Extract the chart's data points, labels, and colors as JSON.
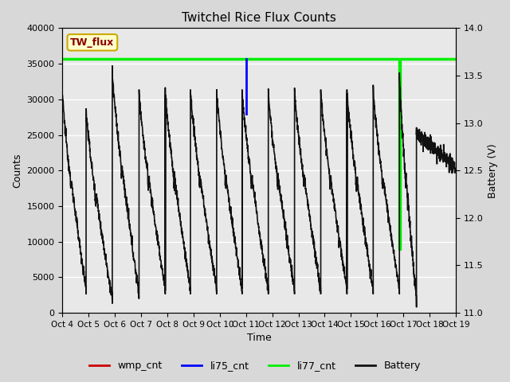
{
  "title": "Twitchel Rice Flux Counts",
  "xlabel": "Time",
  "ylabel_left": "Counts",
  "ylabel_right": "Battery (V)",
  "xlim": [
    0,
    15
  ],
  "ylim_left": [
    0,
    40000
  ],
  "ylim_right": [
    11.0,
    14.0
  ],
  "xtick_labels": [
    "Oct 4",
    "Oct 5",
    "Oct 6",
    "Oct 7",
    "Oct 8",
    "Oct 9",
    "Oct 10",
    "Oct 11",
    "Oct 12",
    "Oct 13",
    "Oct 14",
    "Oct 15",
    "Oct 16",
    "Oct 17",
    "Oct 18",
    "Oct 19"
  ],
  "ytick_left": [
    0,
    5000,
    10000,
    15000,
    20000,
    25000,
    30000,
    35000,
    40000
  ],
  "ytick_right": [
    11.0,
    11.5,
    12.0,
    12.5,
    13.0,
    13.5,
    14.0
  ],
  "background_color": "#d8d8d8",
  "plot_bg_color": "#d8d8d8",
  "plot_inner_color": "#e8e8e8",
  "grid_color": "#ffffff",
  "li77_cnt_value": 35700,
  "li77_color": "#00ee00",
  "li75_color": "#0000ff",
  "wmp_color": "#cc0000",
  "battery_color": "#111111",
  "legend_box_facecolor": "#ffffcc",
  "legend_box_edgecolor": "#ccaa00",
  "legend_text": "TW_flux",
  "figsize": [
    6.4,
    4.8
  ],
  "dpi": 100
}
